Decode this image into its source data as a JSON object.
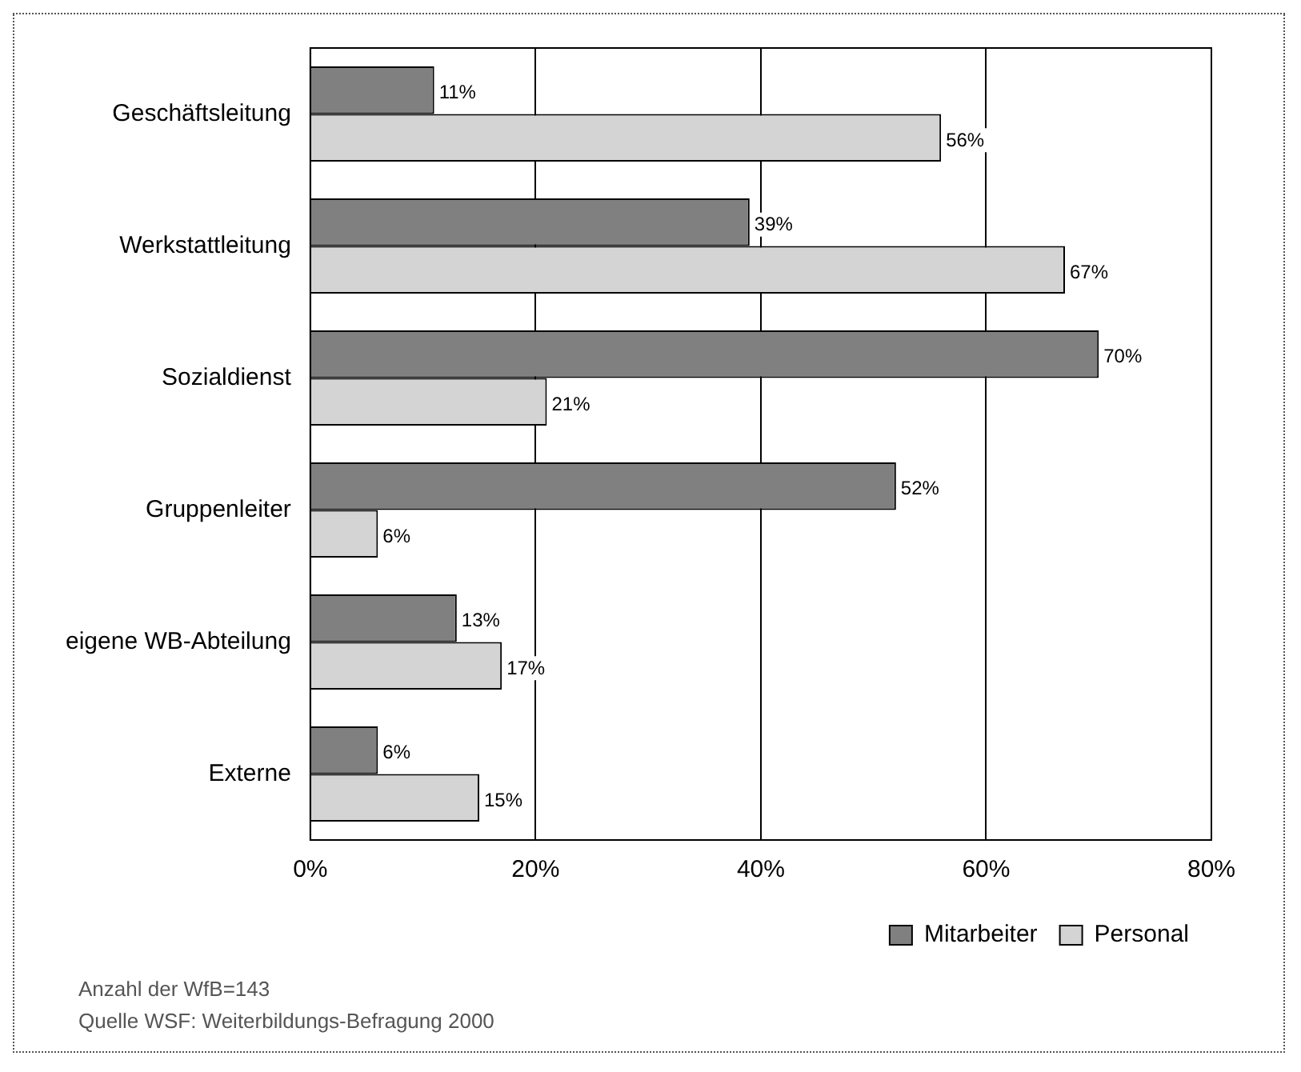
{
  "chart_data": {
    "type": "bar",
    "orientation": "horizontal",
    "categories": [
      "Geschäftsleitung",
      "Werkstattleitung",
      "Sozialdienst",
      "Gruppenleiter",
      "eigene WB-Abteilung",
      "Externe"
    ],
    "series": [
      {
        "name": "Mitarbeiter",
        "color": "#808080",
        "values": [
          11,
          39,
          70,
          52,
          13,
          6
        ],
        "value_labels": [
          "11%",
          "39%",
          "70%",
          "52%",
          "13%",
          "6%"
        ]
      },
      {
        "name": "Personal",
        "color": "#d4d4d4",
        "values": [
          56,
          67,
          21,
          6,
          17,
          15
        ],
        "value_labels": [
          "56%",
          "67%",
          "21%",
          "6%",
          "17%",
          "15%"
        ]
      }
    ],
    "xlim": [
      0,
      80
    ],
    "xticks": [
      {
        "value": 0,
        "label": "0%"
      },
      {
        "value": 20,
        "label": "20%"
      },
      {
        "value": 40,
        "label": "40%"
      },
      {
        "value": 60,
        "label": "60%"
      },
      {
        "value": 80,
        "label": "80%"
      }
    ],
    "grid": "x",
    "legend": "bottom right",
    "annotations": [
      "Anzahl der WfB=143",
      "Quelle WSF: Weiterbildungs-Befragung 2000"
    ]
  }
}
